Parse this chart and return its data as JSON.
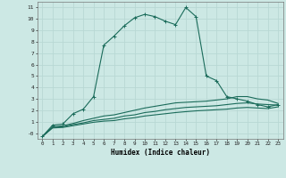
{
  "xlabel": "Humidex (Indice chaleur)",
  "bg_color": "#cce8e4",
  "grid_color": "#b8d8d4",
  "line_color": "#1a6b5a",
  "xlim": [
    -0.5,
    23.5
  ],
  "ylim": [
    -0.5,
    11.5
  ],
  "yticks": [
    0,
    1,
    2,
    3,
    4,
    5,
    6,
    7,
    8,
    9,
    10,
    11
  ],
  "ytick_labels": [
    "-0",
    "1",
    "2",
    "3",
    "4",
    "5",
    "6",
    "7",
    "8",
    "9",
    "10",
    "11"
  ],
  "xticks": [
    0,
    1,
    2,
    3,
    4,
    5,
    6,
    7,
    8,
    9,
    10,
    11,
    12,
    13,
    14,
    15,
    16,
    17,
    18,
    19,
    20,
    21,
    22,
    23
  ],
  "line1_x": [
    0,
    1,
    2,
    3,
    4,
    5,
    6,
    7,
    8,
    9,
    10,
    11,
    12,
    13,
    14,
    15,
    16,
    17,
    18,
    19,
    20,
    21,
    22,
    23
  ],
  "line1_y": [
    -0.3,
    0.7,
    0.8,
    1.7,
    2.1,
    3.2,
    7.7,
    8.5,
    9.4,
    10.1,
    10.4,
    10.2,
    9.8,
    9.5,
    11.0,
    10.2,
    5.0,
    4.6,
    3.2,
    3.0,
    2.8,
    2.5,
    2.3,
    2.5
  ],
  "line2_x": [
    0,
    1,
    2,
    3,
    4,
    5,
    6,
    7,
    8,
    9,
    10,
    11,
    12,
    13,
    14,
    15,
    16,
    17,
    18,
    19,
    20,
    21,
    22,
    23
  ],
  "line2_y": [
    -0.3,
    0.55,
    0.65,
    0.85,
    1.1,
    1.3,
    1.5,
    1.6,
    1.8,
    2.0,
    2.2,
    2.35,
    2.5,
    2.65,
    2.7,
    2.75,
    2.8,
    2.9,
    3.0,
    3.2,
    3.2,
    3.0,
    2.9,
    2.6
  ],
  "line3_x": [
    0,
    1,
    2,
    3,
    4,
    5,
    6,
    7,
    8,
    9,
    10,
    11,
    12,
    13,
    14,
    15,
    16,
    17,
    18,
    19,
    20,
    21,
    22,
    23
  ],
  "line3_y": [
    -0.3,
    0.5,
    0.55,
    0.75,
    0.9,
    1.1,
    1.2,
    1.3,
    1.5,
    1.6,
    1.8,
    1.9,
    2.05,
    2.15,
    2.25,
    2.3,
    2.35,
    2.4,
    2.5,
    2.6,
    2.65,
    2.55,
    2.5,
    2.45
  ],
  "line4_x": [
    0,
    1,
    2,
    3,
    4,
    5,
    6,
    7,
    8,
    9,
    10,
    11,
    12,
    13,
    14,
    15,
    16,
    17,
    18,
    19,
    20,
    21,
    22,
    23
  ],
  "line4_y": [
    -0.3,
    0.45,
    0.5,
    0.65,
    0.8,
    0.95,
    1.05,
    1.1,
    1.25,
    1.35,
    1.5,
    1.6,
    1.7,
    1.8,
    1.88,
    1.95,
    2.0,
    2.05,
    2.1,
    2.2,
    2.25,
    2.2,
    2.15,
    2.3
  ]
}
